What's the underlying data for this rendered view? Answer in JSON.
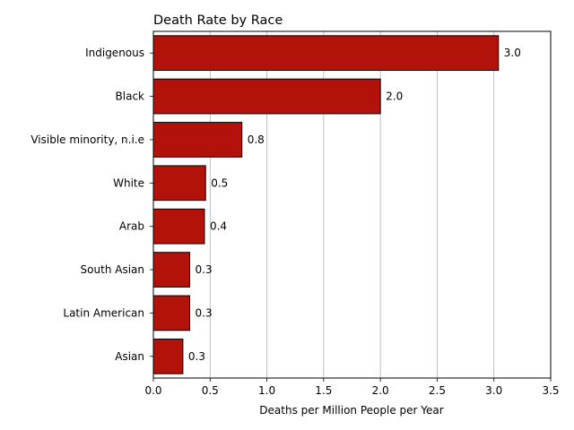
{
  "chart_data": {
    "type": "bar",
    "orientation": "horizontal",
    "title": "Death Rate by Race",
    "xlabel": "Deaths per Million People per Year",
    "ylabel": "",
    "categories": [
      "Indigenous",
      "Black",
      "Visible minority, n.i.e",
      "White",
      "Arab",
      "South Asian",
      "Latin American",
      "Asian"
    ],
    "values": [
      3.04,
      2.0,
      0.78,
      0.46,
      0.45,
      0.32,
      0.32,
      0.26
    ],
    "value_labels": [
      "3.0",
      "2.0",
      "0.8",
      "0.5",
      "0.4",
      "0.3",
      "0.3",
      "0.3"
    ],
    "xlim": [
      0,
      3.5
    ],
    "xticks": [
      0,
      0.5,
      1.0,
      1.5,
      2.0,
      2.5,
      3.0,
      3.5
    ],
    "xtick_labels": [
      "0.0",
      "0.5",
      "1.0",
      "1.5",
      "2.0",
      "2.5",
      "3.0",
      "3.5"
    ],
    "grid": "x-major",
    "legend": "none",
    "colors": {
      "bar_fill": "#b3120b",
      "bar_edge": "#000000",
      "grid": "#b0b0b0"
    }
  }
}
